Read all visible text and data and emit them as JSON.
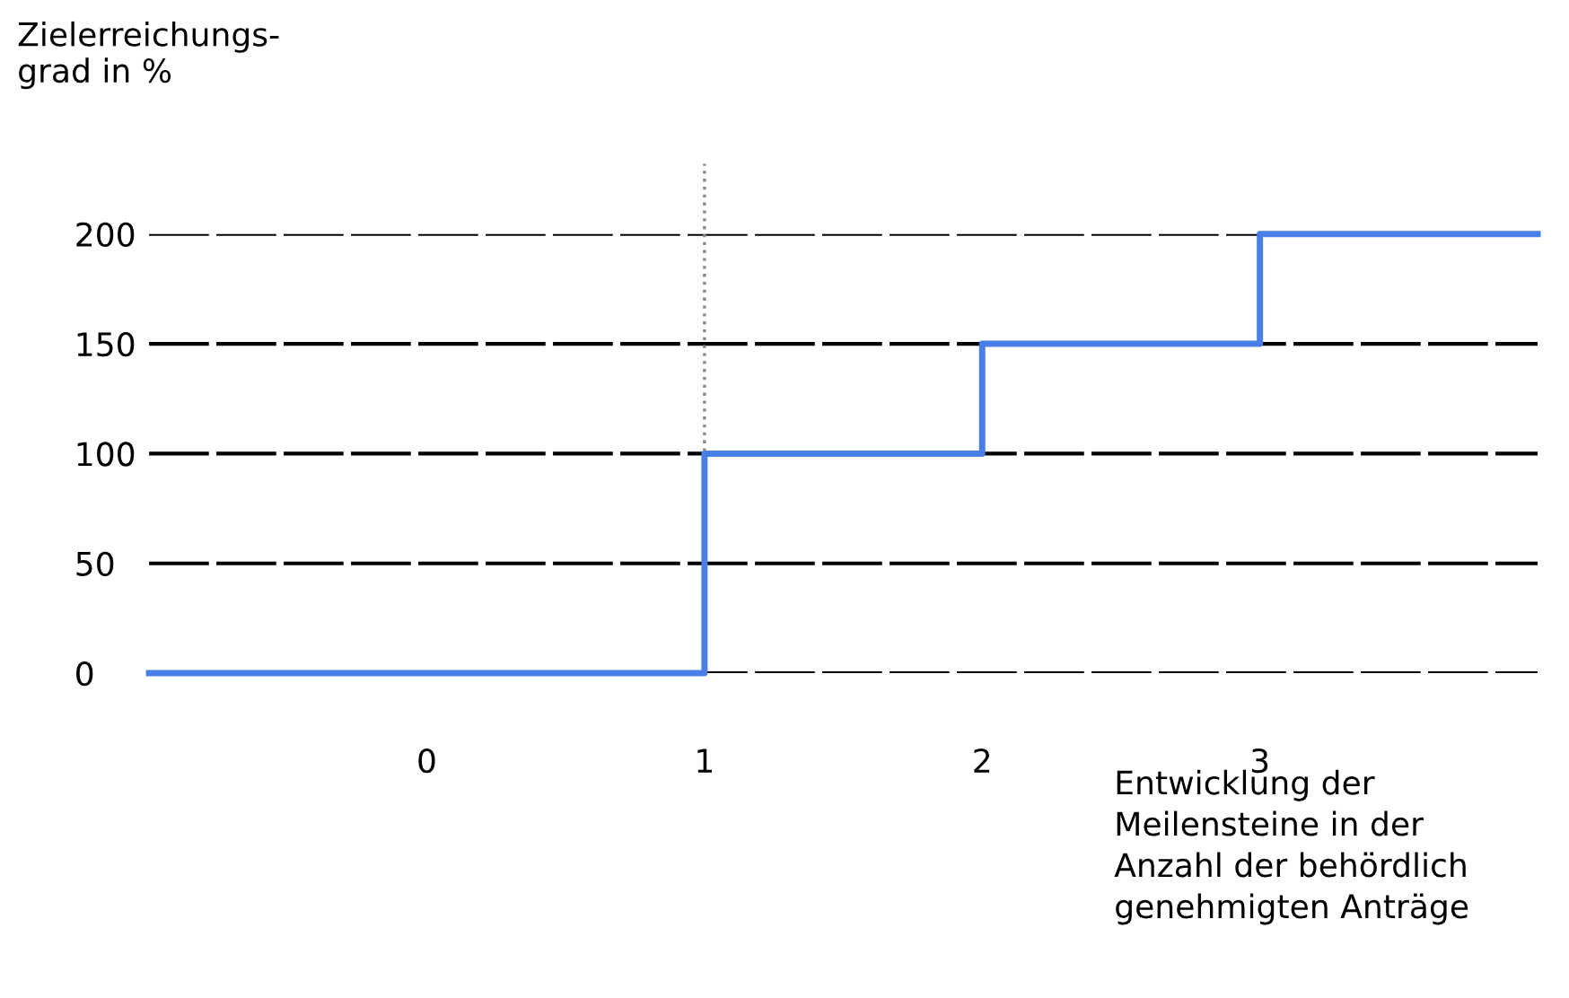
{
  "chart_data": {
    "type": "step",
    "ylabel": "Zielerreichungs-\ngrad in %",
    "xlabel": "Entwicklung der\nMeilensteine in der\nAnzahl der behördlich\ngenehmigten Anträge",
    "x": [
      -1,
      1,
      2,
      3,
      4
    ],
    "series": [
      {
        "color": "#4a7fe8",
        "values": [
          0,
          100,
          150,
          200,
          200
        ]
      }
    ],
    "xlim": [
      -1,
      4
    ],
    "ylim": [
      0,
      200
    ],
    "xticks": [
      0,
      1,
      2,
      3
    ],
    "yticks": [
      0,
      50,
      100,
      150,
      200
    ],
    "grid": "y",
    "ref_lines": [
      {
        "axis": "x",
        "value": 1,
        "color": "#888888",
        "line_style": "dotted"
      }
    ]
  }
}
